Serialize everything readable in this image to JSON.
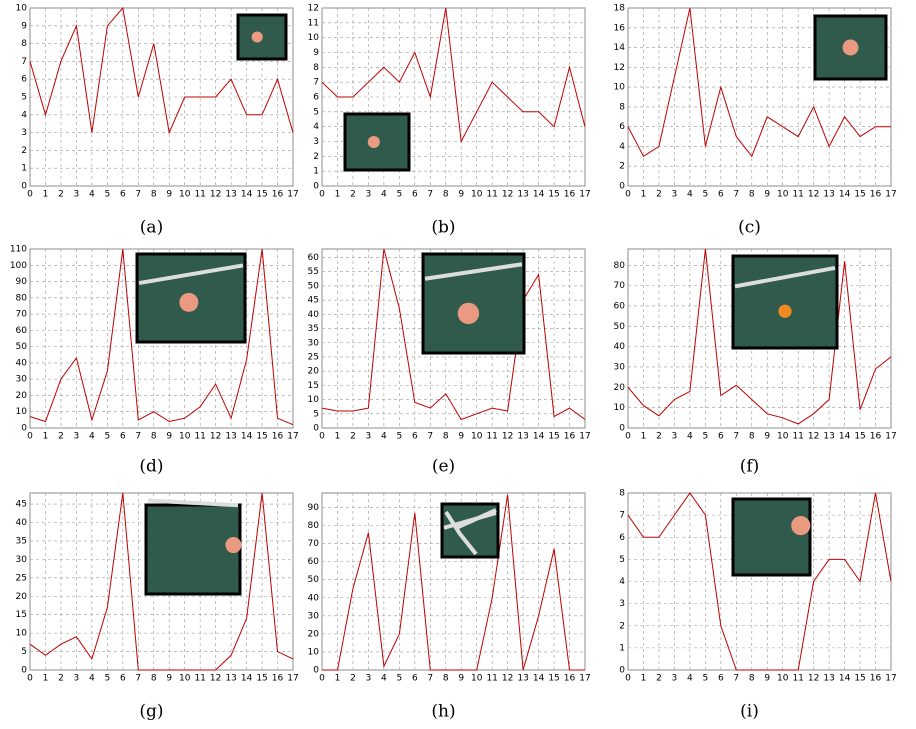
{
  "chart_data": [
    {
      "type": "line",
      "caption": "(a)",
      "color": "#c00000",
      "grid": true,
      "x": [
        0,
        1,
        2,
        3,
        4,
        5,
        6,
        7,
        8,
        9,
        10,
        11,
        12,
        13,
        14,
        15,
        16,
        17
      ],
      "values": [
        7,
        4,
        7,
        9,
        3,
        9,
        10,
        5,
        8,
        3,
        5,
        5,
        5,
        6,
        4,
        4,
        6,
        3
      ],
      "xlim": [
        0,
        17
      ],
      "xticks": [
        0,
        1,
        2,
        3,
        4,
        5,
        6,
        7,
        8,
        9,
        10,
        11,
        12,
        13,
        14,
        15,
        16,
        17
      ],
      "ylim": [
        0,
        10
      ],
      "yticks": [
        0,
        1,
        2,
        3,
        4,
        5,
        6,
        7,
        8,
        9,
        10
      ]
    },
    {
      "type": "line",
      "caption": "(b)",
      "color": "#c00000",
      "grid": true,
      "x": [
        0,
        1,
        2,
        3,
        4,
        5,
        6,
        7,
        8,
        9,
        10,
        11,
        12,
        13,
        14,
        15,
        16,
        17
      ],
      "values": [
        7,
        6,
        6,
        7,
        8,
        7,
        9,
        6,
        12,
        3,
        5,
        7,
        6,
        5,
        5,
        4,
        8,
        4
      ],
      "xlim": [
        0,
        17
      ],
      "xticks": [
        0,
        1,
        2,
        3,
        4,
        5,
        6,
        7,
        8,
        9,
        10,
        11,
        12,
        13,
        14,
        15,
        16,
        17
      ],
      "ylim": [
        0,
        12
      ],
      "yticks": [
        0,
        1,
        2,
        3,
        4,
        5,
        6,
        7,
        8,
        9,
        10,
        11,
        12
      ]
    },
    {
      "type": "line",
      "caption": "(c)",
      "color": "#c00000",
      "grid": true,
      "x": [
        0,
        1,
        2,
        3,
        4,
        5,
        6,
        7,
        8,
        9,
        10,
        11,
        12,
        13,
        14,
        15,
        16,
        17
      ],
      "values": [
        6,
        3,
        4,
        11,
        18,
        4,
        10,
        5,
        3,
        7,
        6,
        5,
        8,
        4,
        7,
        5,
        6,
        6
      ],
      "xlim": [
        0,
        17
      ],
      "xticks": [
        0,
        1,
        2,
        3,
        4,
        5,
        6,
        7,
        8,
        9,
        10,
        11,
        12,
        13,
        14,
        15,
        16,
        17
      ],
      "ylim": [
        0,
        18
      ],
      "yticks": [
        0,
        2,
        4,
        6,
        8,
        10,
        12,
        14,
        16,
        18
      ]
    },
    {
      "type": "line",
      "caption": "(d)",
      "color": "#c00000",
      "grid": true,
      "x": [
        0,
        1,
        2,
        3,
        4,
        5,
        6,
        7,
        8,
        9,
        10,
        11,
        12,
        13,
        14,
        15,
        16,
        17
      ],
      "values": [
        7,
        4,
        30,
        43,
        5,
        35,
        110,
        5,
        10,
        4,
        6,
        13,
        27,
        6,
        42,
        110,
        6,
        2
      ],
      "xlim": [
        0,
        17
      ],
      "xticks": [
        0,
        1,
        2,
        3,
        4,
        5,
        6,
        7,
        8,
        9,
        10,
        11,
        12,
        13,
        14,
        15,
        16,
        17
      ],
      "ylim": [
        0,
        110
      ],
      "yticks": [
        0,
        10,
        20,
        30,
        40,
        50,
        60,
        70,
        80,
        90,
        100,
        110
      ]
    },
    {
      "type": "line",
      "caption": "(e)",
      "color": "#c00000",
      "grid": true,
      "x": [
        0,
        1,
        2,
        3,
        4,
        5,
        6,
        7,
        8,
        9,
        10,
        11,
        12,
        13,
        14,
        15,
        16,
        17
      ],
      "values": [
        7,
        6,
        6,
        7,
        63,
        42,
        9,
        7,
        12,
        3,
        5,
        7,
        6,
        45,
        54,
        4,
        7,
        3
      ],
      "xlim": [
        0,
        17
      ],
      "xticks": [
        0,
        1,
        2,
        3,
        4,
        5,
        6,
        7,
        8,
        9,
        10,
        11,
        12,
        13,
        14,
        15,
        16,
        17
      ],
      "ylim": [
        0,
        63
      ],
      "yticks": [
        0,
        5,
        10,
        15,
        20,
        25,
        30,
        35,
        40,
        45,
        50,
        55,
        60
      ]
    },
    {
      "type": "line",
      "caption": "(f)",
      "color": "#c00000",
      "grid": true,
      "x": [
        0,
        1,
        2,
        3,
        4,
        5,
        6,
        7,
        8,
        9,
        10,
        11,
        12,
        13,
        14,
        15,
        16,
        17
      ],
      "values": [
        20,
        11,
        6,
        14,
        18,
        88,
        16,
        21,
        14,
        7,
        5,
        2,
        7,
        14,
        82,
        9,
        29,
        35
      ],
      "xlim": [
        0,
        17
      ],
      "xticks": [
        0,
        1,
        2,
        3,
        4,
        5,
        6,
        7,
        8,
        9,
        10,
        11,
        12,
        13,
        14,
        15,
        16,
        17
      ],
      "ylim": [
        0,
        88
      ],
      "yticks": [
        0,
        10,
        20,
        30,
        40,
        50,
        60,
        70,
        80
      ]
    },
    {
      "type": "line",
      "caption": "(g)",
      "color": "#c00000",
      "grid": true,
      "x": [
        0,
        1,
        2,
        3,
        4,
        5,
        6,
        7,
        8,
        9,
        10,
        11,
        12,
        13,
        14,
        15,
        16,
        17
      ],
      "values": [
        7,
        4,
        7,
        9,
        3,
        17,
        48,
        0,
        0,
        0,
        0,
        0,
        0,
        4,
        14,
        48,
        5,
        3
      ],
      "xlim": [
        0,
        17
      ],
      "xticks": [
        0,
        1,
        2,
        3,
        4,
        5,
        6,
        7,
        8,
        9,
        10,
        11,
        12,
        13,
        14,
        15,
        16,
        17
      ],
      "ylim": [
        0,
        48
      ],
      "yticks": [
        0,
        5,
        10,
        15,
        20,
        25,
        30,
        35,
        40,
        45
      ]
    },
    {
      "type": "line",
      "caption": "(h)",
      "color": "#c00000",
      "grid": true,
      "x": [
        0,
        1,
        2,
        3,
        4,
        5,
        6,
        7,
        8,
        9,
        10,
        11,
        12,
        13,
        14,
        15,
        16,
        17
      ],
      "values": [
        0,
        0,
        45,
        76,
        2,
        20,
        87,
        0,
        0,
        0,
        0,
        40,
        97,
        0,
        30,
        67,
        0,
        0
      ],
      "xlim": [
        0,
        17
      ],
      "xticks": [
        0,
        1,
        2,
        3,
        4,
        5,
        6,
        7,
        8,
        9,
        10,
        11,
        12,
        13,
        14,
        15,
        16,
        17
      ],
      "ylim": [
        0,
        98
      ],
      "yticks": [
        0,
        10,
        20,
        30,
        40,
        50,
        60,
        70,
        80,
        90
      ]
    },
    {
      "type": "line",
      "caption": "(i)",
      "color": "#c00000",
      "grid": true,
      "x": [
        0,
        1,
        2,
        3,
        4,
        5,
        6,
        7,
        8,
        9,
        10,
        11,
        12,
        13,
        14,
        15,
        16,
        17
      ],
      "values": [
        7,
        6,
        6,
        7,
        8,
        7,
        2,
        0,
        0,
        0,
        0,
        0,
        4,
        5,
        5,
        4,
        8,
        4
      ],
      "xlim": [
        0,
        17
      ],
      "xticks": [
        0,
        1,
        2,
        3,
        4,
        5,
        6,
        7,
        8,
        9,
        10,
        11,
        12,
        13,
        14,
        15,
        16,
        17
      ],
      "ylim": [
        0,
        8
      ],
      "yticks": [
        0,
        1,
        2,
        3,
        4,
        5,
        6,
        7,
        8
      ]
    }
  ]
}
